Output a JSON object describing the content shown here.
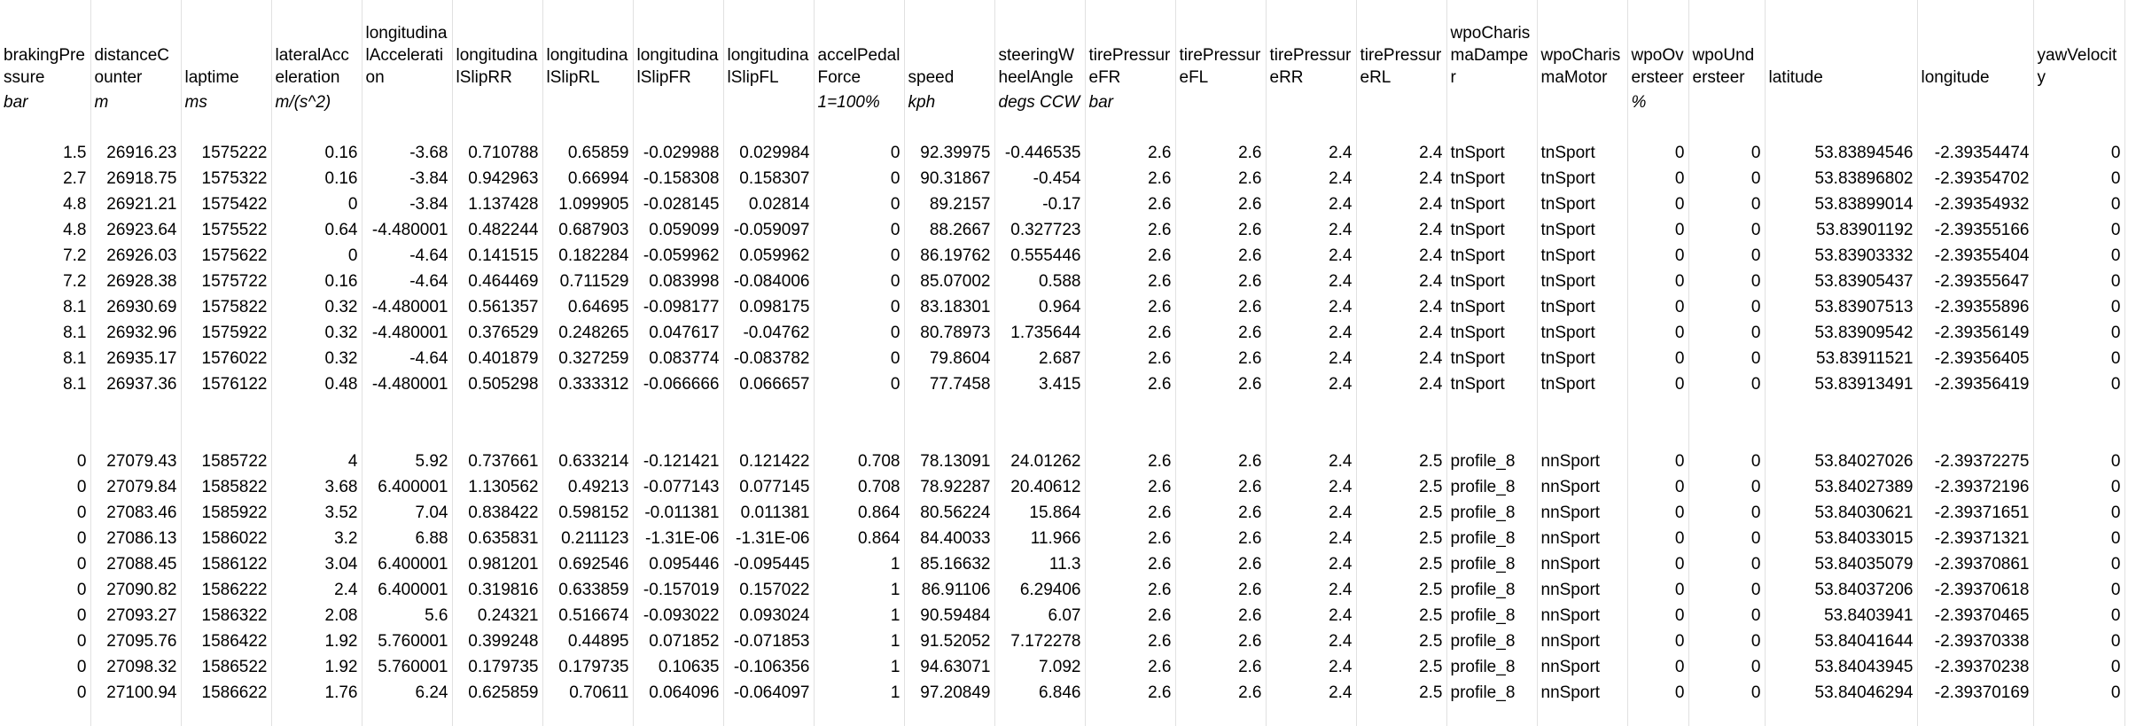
{
  "table": {
    "headers": [
      "brakingPressure",
      "distanceCounter",
      "laptime",
      "lateralAcceleration",
      "longitudinalAcceleration",
      "longitudinalSlipRR",
      "longitudinalSlipRL",
      "longitudinalSlipFR",
      "longitudinalSlipFL",
      "accelPedalForce",
      "speed",
      "steeringWheelAngle",
      "tirePressureFR",
      "tirePressureFL",
      "tirePressureRR",
      "tirePressureRL",
      "wpoCharismaDamper",
      "wpoCharismaMotor",
      "wpoOversteer",
      "wpoUndersteer",
      "latitude",
      "longitude",
      "yawVelocity"
    ],
    "units": [
      "bar",
      "m",
      "ms",
      "m/(s^2)",
      null,
      null,
      null,
      null,
      null,
      "1=100%",
      "kph",
      "degs CCW",
      "bar",
      null,
      null,
      null,
      null,
      null,
      "%",
      null,
      null,
      null,
      null
    ],
    "sections": [
      {
        "rows": [
          [
            1.5,
            26916.23,
            1575222,
            0.16,
            -3.68,
            0.710788,
            0.65859,
            -0.029988,
            0.029984,
            0,
            92.39975,
            -0.446535,
            2.6,
            2.6,
            2.4,
            2.4,
            "tnSport",
            "tnSport",
            0,
            0,
            53.83894546,
            -2.39354474,
            0
          ],
          [
            2.7,
            26918.75,
            1575322,
            0.16,
            -3.84,
            0.942963,
            0.66994,
            -0.158308,
            0.158307,
            0,
            90.31867,
            -0.454,
            2.6,
            2.6,
            2.4,
            2.4,
            "tnSport",
            "tnSport",
            0,
            0,
            53.83896802,
            -2.39354702,
            0
          ],
          [
            4.8,
            26921.21,
            1575422,
            0,
            -3.84,
            1.137428,
            1.099905,
            -0.028145,
            0.02814,
            0,
            89.2157,
            -0.17,
            2.6,
            2.6,
            2.4,
            2.4,
            "tnSport",
            "tnSport",
            0,
            0,
            53.83899014,
            -2.39354932,
            0
          ],
          [
            4.8,
            26923.64,
            1575522,
            0.64,
            -4.480001,
            0.482244,
            0.687903,
            0.059099,
            -0.059097,
            0,
            88.2667,
            0.327723,
            2.6,
            2.6,
            2.4,
            2.4,
            "tnSport",
            "tnSport",
            0,
            0,
            53.83901192,
            -2.39355166,
            0
          ],
          [
            7.2,
            26926.03,
            1575622,
            0,
            -4.64,
            0.141515,
            0.182284,
            -0.059962,
            0.059962,
            0,
            86.19762,
            0.555446,
            2.6,
            2.6,
            2.4,
            2.4,
            "tnSport",
            "tnSport",
            0,
            0,
            53.83903332,
            -2.39355404,
            0
          ],
          [
            7.2,
            26928.38,
            1575722,
            0.16,
            -4.64,
            0.464469,
            0.711529,
            0.083998,
            -0.084006,
            0,
            85.07002,
            0.588,
            2.6,
            2.6,
            2.4,
            2.4,
            "tnSport",
            "tnSport",
            0,
            0,
            53.83905437,
            -2.39355647,
            0
          ],
          [
            8.1,
            26930.69,
            1575822,
            0.32,
            -4.480001,
            0.561357,
            0.64695,
            -0.098177,
            0.098175,
            0,
            83.18301,
            0.964,
            2.6,
            2.6,
            2.4,
            2.4,
            "tnSport",
            "tnSport",
            0,
            0,
            53.83907513,
            -2.39355896,
            0
          ],
          [
            8.1,
            26932.96,
            1575922,
            0.32,
            -4.480001,
            0.376529,
            0.248265,
            0.047617,
            -0.04762,
            0,
            80.78973,
            1.735644,
            2.6,
            2.6,
            2.4,
            2.4,
            "tnSport",
            "tnSport",
            0,
            0,
            53.83909542,
            -2.39356149,
            0
          ],
          [
            8.1,
            26935.17,
            1576022,
            0.32,
            -4.64,
            0.401879,
            0.327259,
            0.083774,
            -0.083782,
            0,
            79.8604,
            2.687,
            2.6,
            2.6,
            2.4,
            2.4,
            "tnSport",
            "tnSport",
            0,
            0,
            53.83911521,
            -2.39356405,
            0
          ],
          [
            8.1,
            26937.36,
            1576122,
            0.48,
            -4.480001,
            0.505298,
            0.333312,
            -0.066666,
            0.066657,
            0,
            77.7458,
            3.415,
            2.6,
            2.6,
            2.4,
            2.4,
            "tnSport",
            "tnSport",
            0,
            0,
            53.83913491,
            -2.39356419,
            0
          ]
        ]
      },
      {
        "rows": [
          [
            0,
            27079.43,
            1585722,
            4,
            5.92,
            0.737661,
            0.633214,
            -0.121421,
            0.121422,
            0.708,
            78.13091,
            24.01262,
            2.6,
            2.6,
            2.4,
            2.5,
            "profile_8",
            "nnSport",
            0,
            0,
            53.84027026,
            -2.39372275,
            0
          ],
          [
            0,
            27079.84,
            1585822,
            3.68,
            6.400001,
            1.130562,
            0.49213,
            -0.077143,
            0.077145,
            0.708,
            78.92287,
            20.40612,
            2.6,
            2.6,
            2.4,
            2.5,
            "profile_8",
            "nnSport",
            0,
            0,
            53.84027389,
            -2.39372196,
            0
          ],
          [
            0,
            27083.46,
            1585922,
            3.52,
            7.04,
            0.838422,
            0.598152,
            -0.011381,
            0.011381,
            0.864,
            80.56224,
            15.864,
            2.6,
            2.6,
            2.4,
            2.5,
            "profile_8",
            "nnSport",
            0,
            0,
            53.84030621,
            -2.39371651,
            0
          ],
          [
            0,
            27086.13,
            1586022,
            3.2,
            6.88,
            0.635831,
            0.211123,
            "-1.31E-06",
            "-1.31E-06",
            0.864,
            84.40033,
            11.966,
            2.6,
            2.6,
            2.4,
            2.5,
            "profile_8",
            "nnSport",
            0,
            0,
            53.84033015,
            -2.39371321,
            0
          ],
          [
            0,
            27088.45,
            1586122,
            3.04,
            6.400001,
            0.981201,
            0.692546,
            0.095446,
            -0.095445,
            1,
            85.16632,
            11.3,
            2.6,
            2.6,
            2.4,
            2.5,
            "profile_8",
            "nnSport",
            0,
            0,
            53.84035079,
            -2.39370861,
            0
          ],
          [
            0,
            27090.82,
            1586222,
            2.4,
            6.400001,
            0.319816,
            0.633859,
            -0.157019,
            0.157022,
            1,
            86.91106,
            6.29406,
            2.6,
            2.6,
            2.4,
            2.5,
            "profile_8",
            "nnSport",
            0,
            0,
            53.84037206,
            -2.39370618,
            0
          ],
          [
            0,
            27093.27,
            1586322,
            2.08,
            5.6,
            0.24321,
            0.516674,
            -0.093022,
            0.093024,
            1,
            90.59484,
            6.07,
            2.6,
            2.6,
            2.4,
            2.5,
            "profile_8",
            "nnSport",
            0,
            0,
            53.8403941,
            -2.39370465,
            0
          ],
          [
            0,
            27095.76,
            1586422,
            1.92,
            5.760001,
            0.399248,
            0.44895,
            0.071852,
            -0.071853,
            1,
            91.52052,
            7.172278,
            2.6,
            2.6,
            2.4,
            2.5,
            "profile_8",
            "nnSport",
            0,
            0,
            53.84041644,
            -2.39370338,
            0
          ],
          [
            0,
            27098.32,
            1586522,
            1.92,
            5.760001,
            0.179735,
            0.179735,
            0.10635,
            -0.106356,
            1,
            94.63071,
            7.092,
            2.6,
            2.6,
            2.4,
            2.5,
            "profile_8",
            "nnSport",
            0,
            0,
            53.84043945,
            -2.39370238,
            0
          ],
          [
            0,
            27100.94,
            1586622,
            1.76,
            6.24,
            0.625859,
            0.70611,
            0.064096,
            -0.064097,
            1,
            97.20849,
            6.846,
            2.6,
            2.6,
            2.4,
            2.5,
            "profile_8",
            "nnSport",
            0,
            0,
            53.84046294,
            -2.39370169,
            0
          ]
        ]
      }
    ]
  }
}
